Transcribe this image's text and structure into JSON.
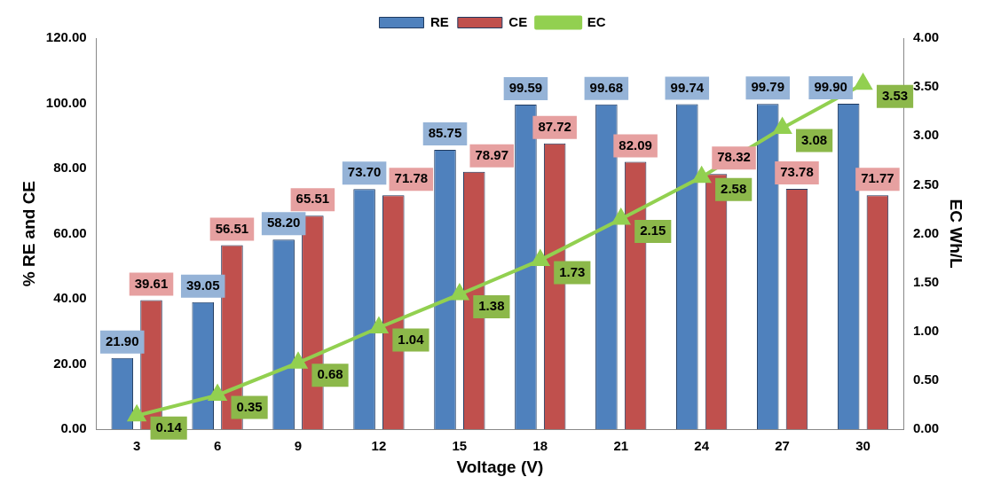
{
  "chart_data": {
    "type": "bar",
    "xlabel": "Voltage (V)",
    "ylabel": "% RE and CE",
    "y2label": "EC Wh/L",
    "categories": [
      "3",
      "6",
      "9",
      "12",
      "15",
      "18",
      "21",
      "24",
      "27",
      "30"
    ],
    "series": [
      {
        "name": "RE",
        "color": "#4f81bd",
        "values": [
          21.9,
          39.05,
          58.2,
          73.7,
          85.75,
          99.59,
          99.68,
          99.74,
          99.79,
          99.9
        ],
        "value_labels": [
          "21.90",
          "39.05",
          "58.20",
          "73.70",
          "85.75",
          "99.59",
          "99.68",
          "99.74",
          "99.79",
          "99.90"
        ]
      },
      {
        "name": "CE",
        "color": "#c0504d",
        "values": [
          39.61,
          56.51,
          65.51,
          71.78,
          78.97,
          87.72,
          82.09,
          78.32,
          73.78,
          71.77
        ],
        "value_labels": [
          "39.61",
          "56.51",
          "65.51",
          "71.78",
          "78.97",
          "87.72",
          "82.09",
          "78.32",
          "73.78",
          "71.77"
        ]
      },
      {
        "name": "EC",
        "type": "line",
        "axis": "y2",
        "color": "#92d050",
        "marker": "triangle",
        "values": [
          0.14,
          0.35,
          0.68,
          1.04,
          1.38,
          1.73,
          2.15,
          2.58,
          3.08,
          3.53
        ],
        "value_labels": [
          "0.14",
          "0.35",
          "0.68",
          "1.04",
          "1.38",
          "1.73",
          "2.15",
          "2.58",
          "3.08",
          "3.53"
        ]
      }
    ],
    "ylim": [
      0,
      120
    ],
    "yticks": [
      {
        "value": 0,
        "label": "0.00"
      },
      {
        "value": 20,
        "label": "20.00"
      },
      {
        "value": 40,
        "label": "40.00"
      },
      {
        "value": 60,
        "label": "60.00"
      },
      {
        "value": 80,
        "label": "80.00"
      },
      {
        "value": 100,
        "label": "100.00"
      },
      {
        "value": 120,
        "label": "120.00"
      }
    ],
    "y2lim": [
      0,
      4
    ],
    "y2ticks": [
      {
        "value": 0,
        "label": "0.00"
      },
      {
        "value": 0.5,
        "label": "0.50"
      },
      {
        "value": 1,
        "label": "1.00"
      },
      {
        "value": 1.5,
        "label": "1.50"
      },
      {
        "value": 2,
        "label": "2.00"
      },
      {
        "value": 2.5,
        "label": "2.50"
      },
      {
        "value": 3,
        "label": "3.00"
      },
      {
        "value": 3.5,
        "label": "3.50"
      },
      {
        "value": 4,
        "label": "4.00"
      }
    ],
    "grid": false,
    "legend": "top"
  }
}
